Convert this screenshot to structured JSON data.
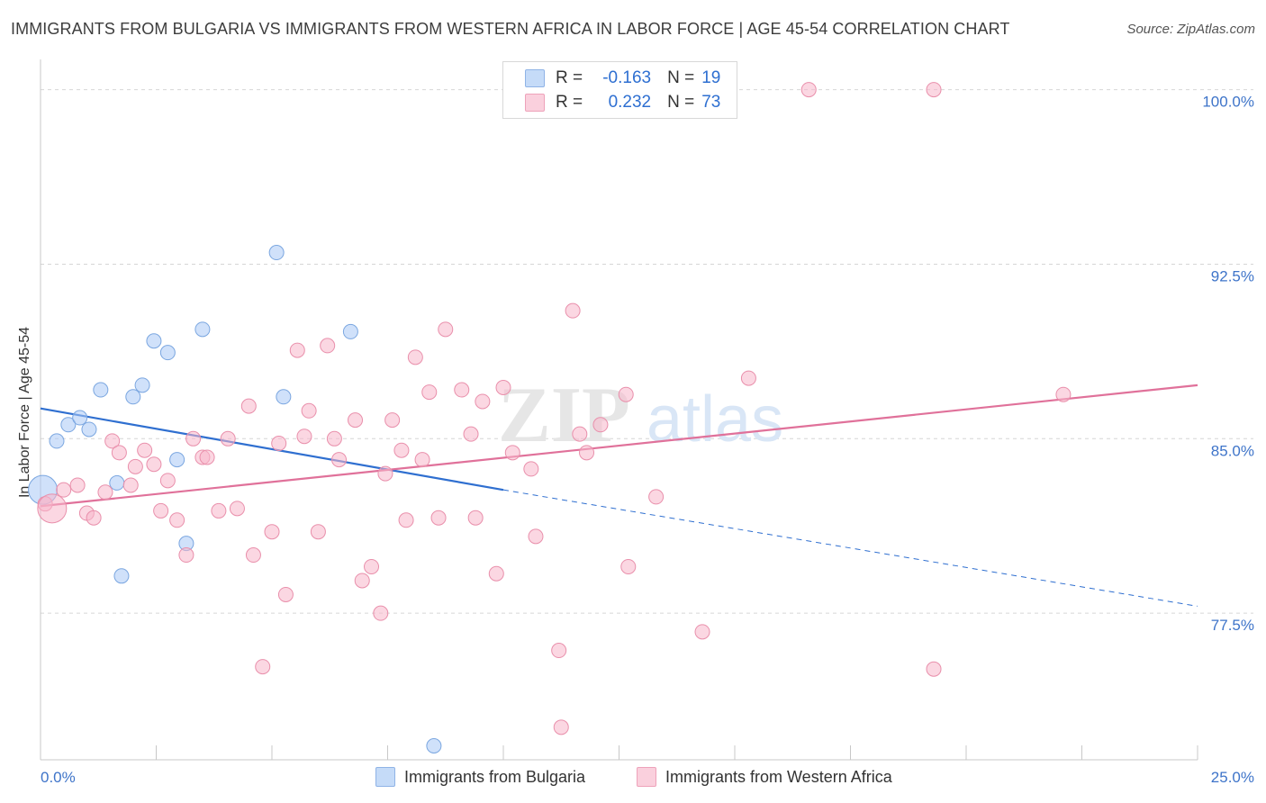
{
  "title": "IMMIGRANTS FROM BULGARIA VS IMMIGRANTS FROM WESTERN AFRICA IN LABOR FORCE | AGE 45-54 CORRELATION CHART",
  "source": "Source: ZipAtlas.com",
  "watermark": {
    "part1": "ZIP",
    "part2": "atlas"
  },
  "legend": {
    "rows": [
      {
        "r_label": "R =",
        "r_value": "-0.163",
        "n_label": "N =",
        "n_value": "19",
        "color": "#a9c8f5"
      },
      {
        "r_label": "R =",
        "r_value": "0.232",
        "n_label": "N =",
        "n_value": "73",
        "color": "#f7b6cb"
      }
    ]
  },
  "bottom_legend": {
    "items": [
      {
        "label": "Immigrants from Bulgaria",
        "color": "#a9c8f5"
      },
      {
        "label": "Immigrants from Western Africa",
        "color": "#f7b6cb"
      }
    ]
  },
  "chart_data": {
    "type": "scatter",
    "ylabel": "In Labor Force | Age 45-54",
    "xlim": [
      0,
      25
    ],
    "ylim": [
      71.2,
      101.3
    ],
    "x_tick_labels": [
      "0.0%",
      "25.0%"
    ],
    "y_ticks": [
      77.5,
      85.0,
      92.5,
      100.0
    ],
    "y_tick_labels": [
      "77.5%",
      "85.0%",
      "92.5%",
      "100.0%"
    ],
    "grid": "horizontal-dashed",
    "series": [
      {
        "name": "Immigrants from Bulgaria",
        "color": "#a9c8f5",
        "stroke": "#7aa6e0",
        "points": [
          [
            0.05,
            82.8
          ],
          [
            0.35,
            84.9
          ],
          [
            0.6,
            85.6
          ],
          [
            0.85,
            85.9
          ],
          [
            1.05,
            85.4
          ],
          [
            1.3,
            87.1
          ],
          [
            1.65,
            83.1
          ],
          [
            1.75,
            79.1
          ],
          [
            2.0,
            86.8
          ],
          [
            2.2,
            87.3
          ],
          [
            2.45,
            89.2
          ],
          [
            2.75,
            88.7
          ],
          [
            2.95,
            84.1
          ],
          [
            3.15,
            80.5
          ],
          [
            3.5,
            89.7
          ],
          [
            5.1,
            93.0
          ],
          [
            5.25,
            86.8
          ],
          [
            6.7,
            89.6
          ],
          [
            8.5,
            71.8
          ]
        ],
        "trend": {
          "x_start": 0,
          "y_start": 86.3,
          "x_end": 10.0,
          "y_end": 82.8,
          "dash_x_end": 25.0,
          "dash_y_end": 77.8,
          "color": "#2f6fd0"
        }
      },
      {
        "name": "Immigrants from Western Africa",
        "color": "#f7b6cb",
        "stroke": "#e98fab",
        "points": [
          [
            0.1,
            82.2
          ],
          [
            0.25,
            82.0
          ],
          [
            0.5,
            82.8
          ],
          [
            0.8,
            83.0
          ],
          [
            1.0,
            81.8
          ],
          [
            1.15,
            81.6
          ],
          [
            1.4,
            82.7
          ],
          [
            1.55,
            84.9
          ],
          [
            1.7,
            84.4
          ],
          [
            1.95,
            83.0
          ],
          [
            2.05,
            83.8
          ],
          [
            2.25,
            84.5
          ],
          [
            2.45,
            83.9
          ],
          [
            2.6,
            81.9
          ],
          [
            2.75,
            83.2
          ],
          [
            2.95,
            81.5
          ],
          [
            3.15,
            80.0
          ],
          [
            3.3,
            85.0
          ],
          [
            3.5,
            84.2
          ],
          [
            3.6,
            84.2
          ],
          [
            3.85,
            81.9
          ],
          [
            4.05,
            85.0
          ],
          [
            4.25,
            82.0
          ],
          [
            4.5,
            86.4
          ],
          [
            4.6,
            80.0
          ],
          [
            4.8,
            75.2
          ],
          [
            5.0,
            81.0
          ],
          [
            5.15,
            84.8
          ],
          [
            5.3,
            78.3
          ],
          [
            5.55,
            88.8
          ],
          [
            5.7,
            85.1
          ],
          [
            5.8,
            86.2
          ],
          [
            6.0,
            81.0
          ],
          [
            6.2,
            89.0
          ],
          [
            6.35,
            85.0
          ],
          [
            6.45,
            84.1
          ],
          [
            6.8,
            85.8
          ],
          [
            6.95,
            78.9
          ],
          [
            7.15,
            79.5
          ],
          [
            7.35,
            77.5
          ],
          [
            7.45,
            83.5
          ],
          [
            7.6,
            85.8
          ],
          [
            7.8,
            84.5
          ],
          [
            7.9,
            81.5
          ],
          [
            8.1,
            88.5
          ],
          [
            8.25,
            84.1
          ],
          [
            8.4,
            87.0
          ],
          [
            8.6,
            81.6
          ],
          [
            8.75,
            89.7
          ],
          [
            9.1,
            87.1
          ],
          [
            9.3,
            85.2
          ],
          [
            9.4,
            81.6
          ],
          [
            9.55,
            86.6
          ],
          [
            9.85,
            79.2
          ],
          [
            10.0,
            87.2
          ],
          [
            10.2,
            84.4
          ],
          [
            10.6,
            83.7
          ],
          [
            10.7,
            80.8
          ],
          [
            11.2,
            75.9
          ],
          [
            11.25,
            72.6
          ],
          [
            11.5,
            90.5
          ],
          [
            11.65,
            85.2
          ],
          [
            11.8,
            84.4
          ],
          [
            12.1,
            85.6
          ],
          [
            12.65,
            86.9
          ],
          [
            12.7,
            79.5
          ],
          [
            13.3,
            82.5
          ],
          [
            14.3,
            76.7
          ],
          [
            15.3,
            87.6
          ],
          [
            16.6,
            100.0
          ],
          [
            19.3,
            75.1
          ],
          [
            19.3,
            100.0
          ],
          [
            22.1,
            86.9
          ]
        ],
        "trend": {
          "x_start": 0,
          "y_start": 82.1,
          "x_end": 25.0,
          "y_end": 87.3,
          "color": "#e0719a"
        }
      }
    ]
  }
}
